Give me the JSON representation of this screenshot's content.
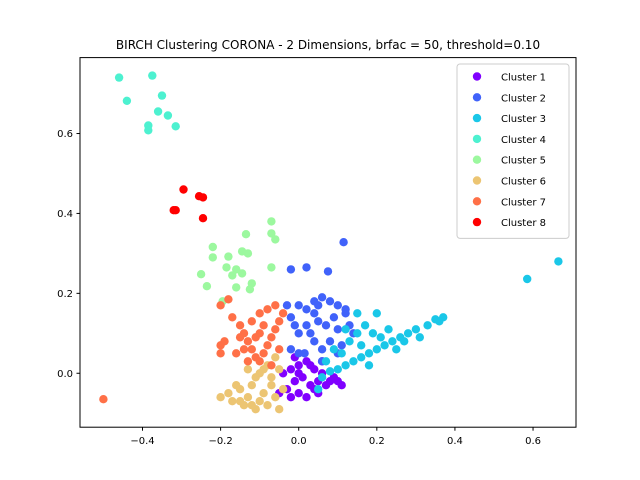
{
  "chart_data": {
    "type": "scatter",
    "title": "BIRCH Clustering CORONA - 2 Dimensions, brfac = 50, threshold=0.10",
    "xlabel": "",
    "ylabel": "",
    "xlim": [
      -0.56,
      0.71
    ],
    "ylim": [
      -0.135,
      0.79
    ],
    "xticks": [
      -0.4,
      -0.2,
      0.0,
      0.2,
      0.4,
      0.6
    ],
    "xtick_labels": [
      "−0.4",
      "−0.2",
      "0.0",
      "0.2",
      "0.4",
      "0.6"
    ],
    "yticks": [
      0.0,
      0.2,
      0.4,
      0.6
    ],
    "ytick_labels": [
      "0.0",
      "0.2",
      "0.4",
      "0.6"
    ],
    "grid": false,
    "legend_position": "top-right",
    "series": [
      {
        "name": "Cluster 1",
        "color": "#8000ff",
        "points": [
          [
            -0.05,
            -0.05
          ],
          [
            -0.03,
            -0.04
          ],
          [
            -0.02,
            0.01
          ],
          [
            -0.01,
            -0.02
          ],
          [
            0.0,
            0.02
          ],
          [
            0.01,
            -0.01
          ],
          [
            0.02,
            0.03
          ],
          [
            0.03,
            -0.03
          ],
          [
            0.04,
            0.01
          ],
          [
            0.05,
            -0.02
          ],
          [
            0.06,
            0.0
          ],
          [
            0.07,
            -0.03
          ],
          [
            0.08,
            -0.02
          ],
          [
            0.09,
            -0.01
          ],
          [
            0.1,
            -0.02
          ],
          [
            0.11,
            -0.03
          ],
          [
            -0.04,
            0.0
          ],
          [
            0.0,
            -0.05
          ],
          [
            0.02,
            -0.06
          ],
          [
            0.04,
            -0.04
          ],
          [
            -0.01,
            0.04
          ],
          [
            0.03,
            0.02
          ],
          [
            0.06,
            0.03
          ],
          [
            -0.02,
            -0.06
          ],
          [
            0.05,
            -0.05
          ],
          [
            0.0,
            0.0
          ]
        ]
      },
      {
        "name": "Cluster 2",
        "color": "#4062fa",
        "points": [
          [
            -0.02,
            0.26
          ],
          [
            0.02,
            0.265
          ],
          [
            0.075,
            0.255
          ],
          [
            0.115,
            0.328
          ],
          [
            -0.03,
            0.17
          ],
          [
            -0.02,
            0.14
          ],
          [
            0.0,
            0.17
          ],
          [
            0.02,
            0.16
          ],
          [
            0.04,
            0.18
          ],
          [
            0.05,
            0.17
          ],
          [
            0.06,
            0.19
          ],
          [
            0.08,
            0.18
          ],
          [
            0.1,
            0.17
          ],
          [
            0.12,
            0.15
          ],
          [
            0.13,
            0.12
          ],
          [
            0.14,
            0.1
          ],
          [
            0.12,
            0.16
          ],
          [
            0.0,
            0.1
          ],
          [
            0.02,
            0.12
          ],
          [
            0.04,
            0.08
          ],
          [
            0.06,
            0.06
          ],
          [
            0.08,
            0.08
          ],
          [
            0.1,
            0.11
          ],
          [
            0.11,
            0.07
          ],
          [
            -0.02,
            0.06
          ],
          [
            0.0,
            0.05
          ],
          [
            0.03,
            0.1
          ],
          [
            0.05,
            0.13
          ],
          [
            0.07,
            0.12
          ],
          [
            0.09,
            0.14
          ],
          [
            0.015,
            0.05
          ],
          [
            -0.01,
            0.12
          ],
          [
            0.06,
            0.03
          ],
          [
            0.04,
            0.15
          ],
          [
            0.1,
            0.05
          ]
        ]
      },
      {
        "name": "Cluster 3",
        "color": "#1ac7e8",
        "points": [
          [
            0.585,
            0.236
          ],
          [
            0.665,
            0.28
          ],
          [
            0.37,
            0.14
          ],
          [
            0.36,
            0.13
          ],
          [
            0.35,
            0.135
          ],
          [
            0.33,
            0.12
          ],
          [
            0.3,
            0.11
          ],
          [
            0.28,
            0.1
          ],
          [
            0.26,
            0.09
          ],
          [
            0.24,
            0.08
          ],
          [
            0.22,
            0.07
          ],
          [
            0.2,
            0.06
          ],
          [
            0.18,
            0.05
          ],
          [
            0.16,
            0.04
          ],
          [
            0.15,
            0.15
          ],
          [
            0.2,
            0.15
          ],
          [
            0.17,
            0.12
          ],
          [
            0.19,
            0.1
          ],
          [
            0.14,
            0.03
          ],
          [
            0.12,
            0.02
          ],
          [
            0.1,
            0.01
          ],
          [
            0.08,
            0.005
          ],
          [
            0.06,
            -0.01
          ],
          [
            0.13,
            0.08
          ],
          [
            0.15,
            0.1
          ],
          [
            0.21,
            0.09
          ],
          [
            0.25,
            0.06
          ],
          [
            0.27,
            0.08
          ],
          [
            0.31,
            0.09
          ],
          [
            0.11,
            0.05
          ],
          [
            0.07,
            0.03
          ],
          [
            0.09,
            0.06
          ],
          [
            0.16,
            0.07
          ],
          [
            0.23,
            0.11
          ],
          [
            0.18,
            0.02
          ],
          [
            0.05,
            -0.04
          ],
          [
            0.12,
            0.11
          ]
        ]
      },
      {
        "name": "Cluster 4",
        "color": "#4df1d0",
        "points": [
          [
            -0.46,
            0.74
          ],
          [
            -0.375,
            0.745
          ],
          [
            -0.44,
            0.682
          ],
          [
            -0.35,
            0.695
          ],
          [
            -0.36,
            0.655
          ],
          [
            -0.335,
            0.645
          ],
          [
            -0.385,
            0.62
          ],
          [
            -0.385,
            0.608
          ],
          [
            -0.315,
            0.618
          ]
        ]
      },
      {
        "name": "Cluster 5",
        "color": "#9cf89f",
        "points": [
          [
            -0.07,
            0.38
          ],
          [
            -0.07,
            0.35
          ],
          [
            -0.06,
            0.335
          ],
          [
            -0.135,
            0.348
          ],
          [
            -0.22,
            0.316
          ],
          [
            -0.22,
            0.29
          ],
          [
            -0.18,
            0.292
          ],
          [
            -0.25,
            0.248
          ],
          [
            -0.13,
            0.3
          ],
          [
            -0.185,
            0.265
          ],
          [
            -0.16,
            0.26
          ],
          [
            -0.17,
            0.245
          ],
          [
            -0.145,
            0.25
          ],
          [
            -0.12,
            0.225
          ],
          [
            -0.125,
            0.21
          ],
          [
            -0.16,
            0.215
          ],
          [
            -0.235,
            0.218
          ],
          [
            -0.07,
            0.265
          ],
          [
            -0.195,
            0.18
          ],
          [
            -0.145,
            0.305
          ]
        ]
      },
      {
        "name": "Cluster 6",
        "color": "#ecc573",
        "points": [
          [
            -0.2,
            -0.06
          ],
          [
            -0.18,
            -0.05
          ],
          [
            -0.17,
            -0.07
          ],
          [
            -0.15,
            -0.04
          ],
          [
            -0.14,
            -0.08
          ],
          [
            -0.13,
            -0.06
          ],
          [
            -0.12,
            -0.03
          ],
          [
            -0.11,
            -0.09
          ],
          [
            -0.1,
            -0.07
          ],
          [
            -0.09,
            -0.05
          ],
          [
            -0.08,
            -0.08
          ],
          [
            -0.07,
            -0.03
          ],
          [
            -0.06,
            -0.06
          ],
          [
            -0.05,
            -0.09
          ],
          [
            -0.1,
            0.0
          ],
          [
            -0.08,
            0.02
          ],
          [
            -0.06,
            0.04
          ],
          [
            -0.09,
            0.01
          ],
          [
            -0.11,
            -0.01
          ],
          [
            -0.07,
            -0.01
          ],
          [
            -0.12,
            -0.08
          ],
          [
            -0.15,
            -0.07
          ],
          [
            -0.04,
            -0.04
          ],
          [
            -0.05,
            0.01
          ],
          [
            -0.13,
            0.01
          ],
          [
            -0.16,
            -0.03
          ]
        ]
      },
      {
        "name": "Cluster 7",
        "color": "#ff7047",
        "points": [
          [
            -0.5,
            -0.065
          ],
          [
            -0.2,
            0.17
          ],
          [
            -0.18,
            0.185
          ],
          [
            -0.2,
            0.07
          ],
          [
            -0.2,
            0.05
          ],
          [
            -0.19,
            0.08
          ],
          [
            -0.17,
            0.14
          ],
          [
            -0.15,
            0.12
          ],
          [
            -0.14,
            0.1
          ],
          [
            -0.13,
            0.08
          ],
          [
            -0.12,
            0.06
          ],
          [
            -0.11,
            0.04
          ],
          [
            -0.1,
            0.03
          ],
          [
            -0.09,
            0.05
          ],
          [
            -0.08,
            0.07
          ],
          [
            -0.07,
            0.09
          ],
          [
            -0.06,
            0.11
          ],
          [
            -0.05,
            0.13
          ],
          [
            -0.04,
            0.15
          ],
          [
            -0.08,
            0.16
          ],
          [
            -0.1,
            0.15
          ],
          [
            -0.12,
            0.13
          ],
          [
            -0.14,
            0.06
          ],
          [
            -0.16,
            0.05
          ],
          [
            -0.13,
            0.03
          ],
          [
            -0.09,
            0.12
          ],
          [
            -0.11,
            0.09
          ],
          [
            -0.07,
            0.02
          ],
          [
            -0.05,
            0.06
          ],
          [
            -0.15,
            0.09
          ],
          [
            -0.06,
            0.17
          ],
          [
            -0.1,
            0.1
          ]
        ]
      },
      {
        "name": "Cluster 8",
        "color": "#ff0000",
        "points": [
          [
            -0.295,
            0.46
          ],
          [
            -0.255,
            0.443
          ],
          [
            -0.245,
            0.44
          ],
          [
            -0.315,
            0.408
          ],
          [
            -0.32,
            0.408
          ],
          [
            -0.245,
            0.388
          ]
        ]
      }
    ]
  }
}
